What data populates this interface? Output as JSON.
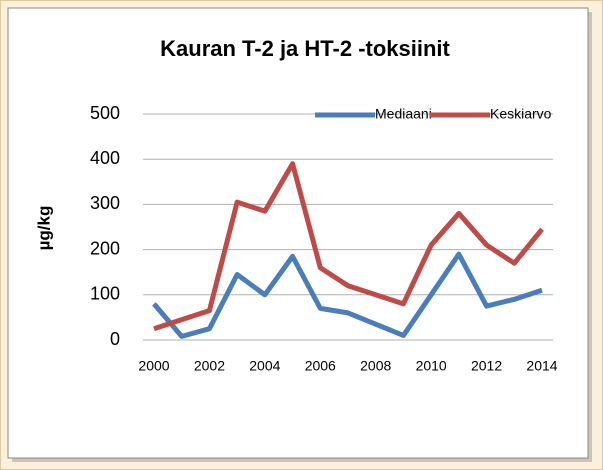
{
  "chart_data": {
    "type": "line",
    "title": "Kauran T-2 ja HT-2 -toksiinit",
    "y_label": "µg/kg",
    "x": [
      2000,
      2001,
      2002,
      2003,
      2004,
      2005,
      2006,
      2007,
      2008,
      2009,
      2010,
      2011,
      2012,
      2013,
      2014
    ],
    "series": [
      {
        "name": "Mediaani",
        "color": "#4a7ebb",
        "values": [
          80,
          8,
          25,
          145,
          100,
          185,
          70,
          60,
          35,
          10,
          100,
          190,
          75,
          90,
          110
        ]
      },
      {
        "name": "Keskiarvo",
        "color": "#be4b48",
        "values": [
          25,
          45,
          65,
          305,
          285,
          390,
          160,
          120,
          100,
          80,
          210,
          280,
          210,
          170,
          245
        ]
      }
    ],
    "xlim": [
      2000,
      2014
    ],
    "xticks": [
      2000,
      2002,
      2004,
      2006,
      2008,
      2010,
      2012,
      2014
    ],
    "ylim": [
      0,
      500
    ],
    "yticks": [
      0,
      100,
      200,
      300,
      400,
      500
    ],
    "grid": true,
    "legend": "top-right"
  }
}
